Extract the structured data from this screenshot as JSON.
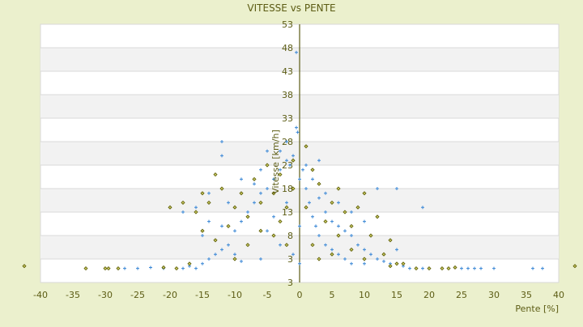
{
  "chart_data": {
    "type": "scatter",
    "title": "VITESSE vs PENTE",
    "xlabel": "Pente [%]",
    "ylabel": "Vitesse [km/h]",
    "xlim": [
      -40,
      40
    ],
    "ylim": [
      -2,
      53
    ],
    "x_ticks": [
      "-40",
      "-35",
      "-30",
      "-25",
      "-20",
      "-15",
      "-10",
      "-5",
      "0",
      "5",
      "10",
      "15",
      "20",
      "25",
      "30",
      "35",
      "40"
    ],
    "y_ticks": [
      "53",
      "48",
      "43",
      "38",
      "33",
      "28",
      "23",
      "18",
      "13",
      "8",
      "3",
      "3"
    ],
    "grid": true,
    "legend": "none",
    "colors": {
      "series_blue": "#3a87d6",
      "series_olive": "#5a5a00",
      "background": "#ebf0cd",
      "axis": "#5c5c14"
    },
    "series": [
      {
        "color": "#3a87d6",
        "marker": "plus",
        "points": [
          [
            -28,
            1
          ],
          [
            -27,
            1
          ],
          [
            -25,
            1
          ],
          [
            -23,
            1.2
          ],
          [
            -21,
            1
          ],
          [
            -18,
            1
          ],
          [
            -17,
            1.5
          ],
          [
            -16,
            1
          ],
          [
            -15,
            2
          ],
          [
            -14,
            3
          ],
          [
            -13,
            4
          ],
          [
            -12,
            5
          ],
          [
            -11,
            6
          ],
          [
            -12,
            28
          ],
          [
            -12,
            25
          ],
          [
            -10,
            9
          ],
          [
            -9,
            11
          ],
          [
            -8,
            13
          ],
          [
            -7,
            15
          ],
          [
            -6,
            17
          ],
          [
            -5,
            18
          ],
          [
            -4,
            20
          ],
          [
            -3,
            22
          ],
          [
            -2,
            24
          ],
          [
            -1,
            25
          ],
          [
            -0.5,
            31
          ],
          [
            -0.3,
            30
          ],
          [
            0,
            20
          ],
          [
            0,
            10
          ],
          [
            0,
            2
          ],
          [
            0.5,
            22
          ],
          [
            1,
            23
          ],
          [
            1,
            18
          ],
          [
            1.5,
            15
          ],
          [
            2,
            20
          ],
          [
            2,
            12
          ],
          [
            2.5,
            10
          ],
          [
            3,
            16
          ],
          [
            3,
            8
          ],
          [
            4,
            6
          ],
          [
            4,
            13
          ],
          [
            5,
            11
          ],
          [
            5,
            5
          ],
          [
            6,
            4
          ],
          [
            6,
            10
          ],
          [
            7,
            9
          ],
          [
            7,
            3
          ],
          [
            8,
            8
          ],
          [
            8,
            2
          ],
          [
            9,
            6
          ],
          [
            10,
            5
          ],
          [
            10,
            2
          ],
          [
            11,
            4
          ],
          [
            12,
            3
          ],
          [
            12,
            18
          ],
          [
            13,
            2.5
          ],
          [
            14,
            2
          ],
          [
            15,
            18
          ],
          [
            15,
            5
          ],
          [
            16,
            1.5
          ],
          [
            17,
            1
          ],
          [
            19,
            1
          ],
          [
            19,
            14
          ],
          [
            20,
            1
          ],
          [
            25,
            1
          ],
          [
            26,
            1
          ],
          [
            27,
            1
          ],
          [
            28,
            1
          ],
          [
            30,
            1
          ],
          [
            36,
            1
          ],
          [
            37.5,
            1
          ],
          [
            -15,
            8
          ],
          [
            -14,
            11
          ],
          [
            -10,
            4
          ],
          [
            -9,
            2.5
          ],
          [
            -6,
            3
          ],
          [
            -5,
            9
          ],
          [
            -4,
            12
          ],
          [
            -3,
            6
          ],
          [
            -2,
            15
          ],
          [
            -1,
            4
          ],
          [
            -8,
            6
          ],
          [
            -7,
            19
          ],
          [
            -11,
            15
          ],
          [
            -16,
            14
          ],
          [
            -18,
            13
          ],
          [
            -5,
            26
          ],
          [
            -3,
            26
          ],
          [
            -2,
            28
          ],
          [
            -1.5,
            23
          ],
          [
            3,
            24
          ],
          [
            4,
            17
          ],
          [
            6,
            15
          ],
          [
            8,
            13
          ],
          [
            10,
            11
          ],
          [
            -14,
            17
          ],
          [
            -12,
            10
          ],
          [
            -9,
            20
          ],
          [
            -6,
            22
          ],
          [
            -0.5,
            47
          ]
        ]
      },
      {
        "color": "#5a5a00",
        "marker": "diamond",
        "points": [
          [
            -42.5,
            1.5
          ],
          [
            -33,
            1
          ],
          [
            -30,
            1
          ],
          [
            -29.5,
            1
          ],
          [
            -28,
            1
          ],
          [
            -21,
            1.2
          ],
          [
            -19,
            1
          ],
          [
            -17,
            2
          ],
          [
            -15,
            9
          ],
          [
            -16,
            13
          ],
          [
            -14,
            15
          ],
          [
            -13,
            7
          ],
          [
            -12,
            18
          ],
          [
            -11,
            10
          ],
          [
            -10,
            14
          ],
          [
            -10,
            3
          ],
          [
            -9,
            17
          ],
          [
            -8,
            12
          ],
          [
            -8,
            6
          ],
          [
            -7,
            20
          ],
          [
            -6,
            9
          ],
          [
            -6,
            15
          ],
          [
            -5,
            23
          ],
          [
            -4,
            8
          ],
          [
            -4,
            17
          ],
          [
            -3,
            21
          ],
          [
            -3,
            11
          ],
          [
            -2,
            14
          ],
          [
            -2,
            6
          ],
          [
            -1,
            18
          ],
          [
            -1,
            24
          ],
          [
            1,
            27
          ],
          [
            1,
            14
          ],
          [
            2,
            22
          ],
          [
            2,
            6
          ],
          [
            3,
            19
          ],
          [
            3,
            3
          ],
          [
            4,
            11
          ],
          [
            5,
            15
          ],
          [
            5,
            4
          ],
          [
            6,
            8
          ],
          [
            7,
            13
          ],
          [
            8,
            5
          ],
          [
            8,
            10
          ],
          [
            9,
            14
          ],
          [
            10,
            3
          ],
          [
            11,
            8
          ],
          [
            12,
            12
          ],
          [
            13,
            4
          ],
          [
            14,
            7
          ],
          [
            14,
            1.5
          ],
          [
            15,
            2
          ],
          [
            16,
            2
          ],
          [
            18,
            1
          ],
          [
            20,
            1
          ],
          [
            22,
            1
          ],
          [
            23,
            1
          ],
          [
            24,
            1.2
          ],
          [
            42.5,
            1.5
          ],
          [
            -18,
            15
          ],
          [
            -20,
            14
          ],
          [
            -13,
            21
          ],
          [
            -15,
            17
          ],
          [
            6,
            18
          ],
          [
            10,
            17
          ]
        ]
      }
    ]
  }
}
